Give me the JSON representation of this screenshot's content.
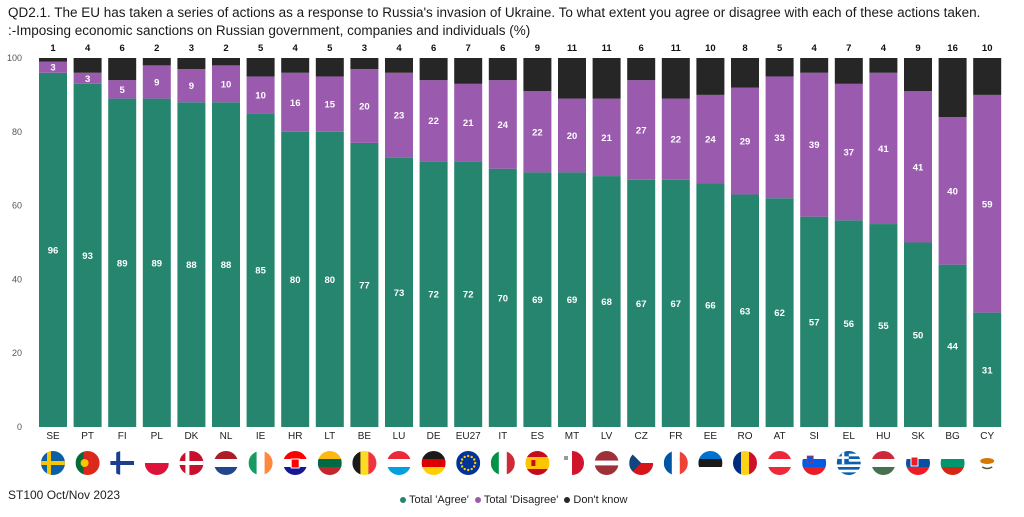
{
  "title": {
    "line1": "QD2.1. The EU has taken a series of actions as a response to Russia's invasion of Ukraine. To what extent you agree or disagree with each of these actions taken.",
    "line2": ":-Imposing economic sanctions on Russian government, companies and individuals (%)"
  },
  "source": "ST100 Oct/Nov 2023",
  "colors": {
    "agree": "#25856f",
    "disagree": "#9a5aad",
    "dontknow": "#262626"
  },
  "chart_data": {
    "type": "bar",
    "stacked": true,
    "title": "Imposing economic sanctions on Russian government, companies and individuals (%)",
    "ylim": [
      0,
      100
    ],
    "yticks": [
      0,
      20,
      40,
      60,
      80,
      100
    ],
    "categories": [
      "SE",
      "PT",
      "FI",
      "PL",
      "DK",
      "NL",
      "IE",
      "HR",
      "LT",
      "BE",
      "LU",
      "DE",
      "EU27",
      "IT",
      "ES",
      "MT",
      "LV",
      "CZ",
      "FR",
      "EE",
      "RO",
      "AT",
      "SI",
      "EL",
      "HU",
      "SK",
      "BG",
      "CY"
    ],
    "series": [
      {
        "name": "Total 'Agree'",
        "values": [
          96,
          93,
          89,
          89,
          88,
          88,
          85,
          80,
          80,
          77,
          73,
          72,
          72,
          70,
          69,
          69,
          68,
          67,
          67,
          66,
          63,
          62,
          57,
          56,
          55,
          50,
          44,
          31
        ]
      },
      {
        "name": "Total 'Disagree'",
        "values": [
          3,
          3,
          5,
          9,
          9,
          10,
          10,
          16,
          15,
          20,
          23,
          22,
          21,
          24,
          22,
          20,
          21,
          27,
          22,
          24,
          29,
          33,
          39,
          37,
          41,
          41,
          40,
          59
        ]
      },
      {
        "name": "Don't know",
        "values": [
          1,
          4,
          6,
          2,
          3,
          2,
          5,
          4,
          5,
          3,
          4,
          6,
          7,
          6,
          9,
          11,
          11,
          6,
          11,
          10,
          8,
          5,
          4,
          7,
          4,
          9,
          16,
          10
        ]
      }
    ]
  },
  "legend": {
    "agree": "Total 'Agree'",
    "disagree": "Total 'Disagree'",
    "dontknow": "Don't know"
  },
  "flag_icons": [
    "sweden-flag-icon",
    "portugal-flag-icon",
    "finland-flag-icon",
    "poland-flag-icon",
    "denmark-flag-icon",
    "netherlands-flag-icon",
    "ireland-flag-icon",
    "croatia-flag-icon",
    "lithuania-flag-icon",
    "belgium-flag-icon",
    "luxembourg-flag-icon",
    "germany-flag-icon",
    "eu-flag-icon",
    "italy-flag-icon",
    "spain-flag-icon",
    "malta-flag-icon",
    "latvia-flag-icon",
    "czechia-flag-icon",
    "france-flag-icon",
    "estonia-flag-icon",
    "romania-flag-icon",
    "austria-flag-icon",
    "slovenia-flag-icon",
    "greece-flag-icon",
    "hungary-flag-icon",
    "slovakia-flag-icon",
    "bulgaria-flag-icon",
    "cyprus-flag-icon"
  ]
}
